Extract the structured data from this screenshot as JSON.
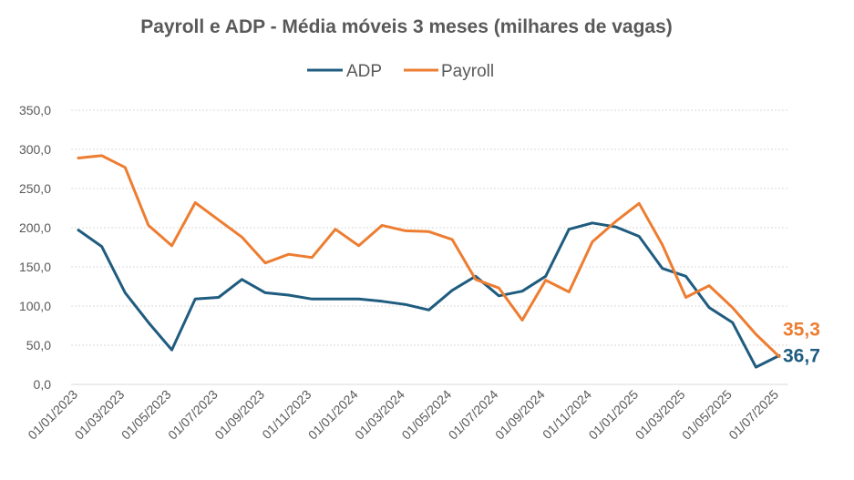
{
  "chart_data": {
    "type": "line",
    "title": "Payroll e ADP - Média móveis 3 meses (milhares de vagas)",
    "xlabel": "",
    "ylabel": "",
    "ylim": [
      0,
      350
    ],
    "y_ticks": [
      "0,0",
      "50,0",
      "100,0",
      "150,0",
      "200,0",
      "250,0",
      "300,0",
      "350,0"
    ],
    "grid": true,
    "legend_position": "top-center",
    "x_tick_labels": [
      "01/01/2023",
      "01/03/2023",
      "01/05/2023",
      "01/07/2023",
      "01/09/2023",
      "01/11/2023",
      "01/01/2024",
      "01/03/2024",
      "01/05/2024",
      "01/07/2024",
      "01/09/2024",
      "01/11/2024",
      "01/01/2025",
      "01/03/2025",
      "01/05/2025",
      "01/07/2025"
    ],
    "x": [
      "01/01/2023",
      "01/02/2023",
      "01/03/2023",
      "01/04/2023",
      "01/05/2023",
      "01/06/2023",
      "01/07/2023",
      "01/08/2023",
      "01/09/2023",
      "01/10/2023",
      "01/11/2023",
      "01/12/2023",
      "01/01/2024",
      "01/02/2024",
      "01/03/2024",
      "01/04/2024",
      "01/05/2024",
      "01/06/2024",
      "01/07/2024",
      "01/08/2024",
      "01/09/2024",
      "01/10/2024",
      "01/11/2024",
      "01/12/2024",
      "01/01/2025",
      "01/02/2025",
      "01/03/2025",
      "01/04/2025",
      "01/05/2025",
      "01/06/2025",
      "01/07/2025"
    ],
    "series": [
      {
        "name": "ADP",
        "color": "#1f5c7f",
        "values": [
          197,
          176,
          117,
          79,
          44,
          109,
          111,
          134,
          117,
          114,
          109,
          109,
          109,
          106,
          102,
          95,
          120,
          138,
          113,
          119,
          138,
          198,
          206,
          201,
          189,
          148,
          138,
          98,
          79,
          22,
          36.7
        ],
        "end_label": "36,7",
        "end_label_color": "#1f5c7f"
      },
      {
        "name": "Payroll",
        "color": "#ed7d31",
        "values": [
          289,
          292,
          277,
          203,
          177,
          232,
          210,
          188,
          155,
          166,
          162,
          198,
          177,
          203,
          196,
          195,
          185,
          134,
          123,
          82,
          133,
          118,
          182,
          208,
          231,
          178,
          111,
          126,
          98,
          64,
          35.3
        ],
        "end_label": "35,3",
        "end_label_color": "#ed7d31"
      }
    ]
  }
}
